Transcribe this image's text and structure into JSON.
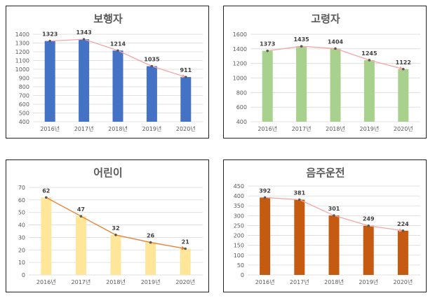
{
  "chart_data": [
    {
      "type": "bar",
      "title": "보행자",
      "categories": [
        "2016년",
        "2017년",
        "2018년",
        "2019년",
        "2020년"
      ],
      "values": [
        1323,
        1343,
        1214,
        1035,
        911
      ],
      "ylim": [
        400,
        1400
      ],
      "yticks": [
        400,
        500,
        600,
        700,
        800,
        900,
        1000,
        1100,
        1200,
        1300,
        1400
      ],
      "grid": true,
      "trendline": true,
      "colors": {
        "bar": "#4472c4",
        "line": "#f4a6a6"
      }
    },
    {
      "type": "bar",
      "title": "고령자",
      "categories": [
        "2016년",
        "2017년",
        "2018년",
        "2019년",
        "2020년"
      ],
      "values": [
        1373,
        1435,
        1404,
        1245,
        1122
      ],
      "ylim": [
        400,
        1600
      ],
      "yticks": [
        400,
        600,
        800,
        1000,
        1200,
        1400,
        1600
      ],
      "grid": true,
      "trendline": true,
      "colors": {
        "bar": "#a9d18e",
        "line": "#f4a6a6"
      }
    },
    {
      "type": "bar",
      "title": "어린이",
      "categories": [
        "2016년",
        "2017년",
        "2018년",
        "2019년",
        "2020년"
      ],
      "values": [
        62,
        47,
        32,
        26,
        21
      ],
      "ylim": [
        0,
        70
      ],
      "yticks": [
        0,
        10,
        20,
        30,
        40,
        50,
        60,
        70
      ],
      "grid": true,
      "trendline": true,
      "colors": {
        "bar": "#ffe699",
        "line": "#ed7d31"
      }
    },
    {
      "type": "bar",
      "title": "음주운전",
      "categories": [
        "2016년",
        "2017년",
        "2018년",
        "2019년",
        "2020년"
      ],
      "values": [
        392,
        381,
        301,
        249,
        224
      ],
      "ylim": [
        0,
        450
      ],
      "yticks": [
        0,
        50,
        100,
        150,
        200,
        250,
        300,
        350,
        400,
        450
      ],
      "grid": true,
      "trendline": true,
      "colors": {
        "bar": "#c55a11",
        "line": "#f4a6a6"
      }
    }
  ]
}
